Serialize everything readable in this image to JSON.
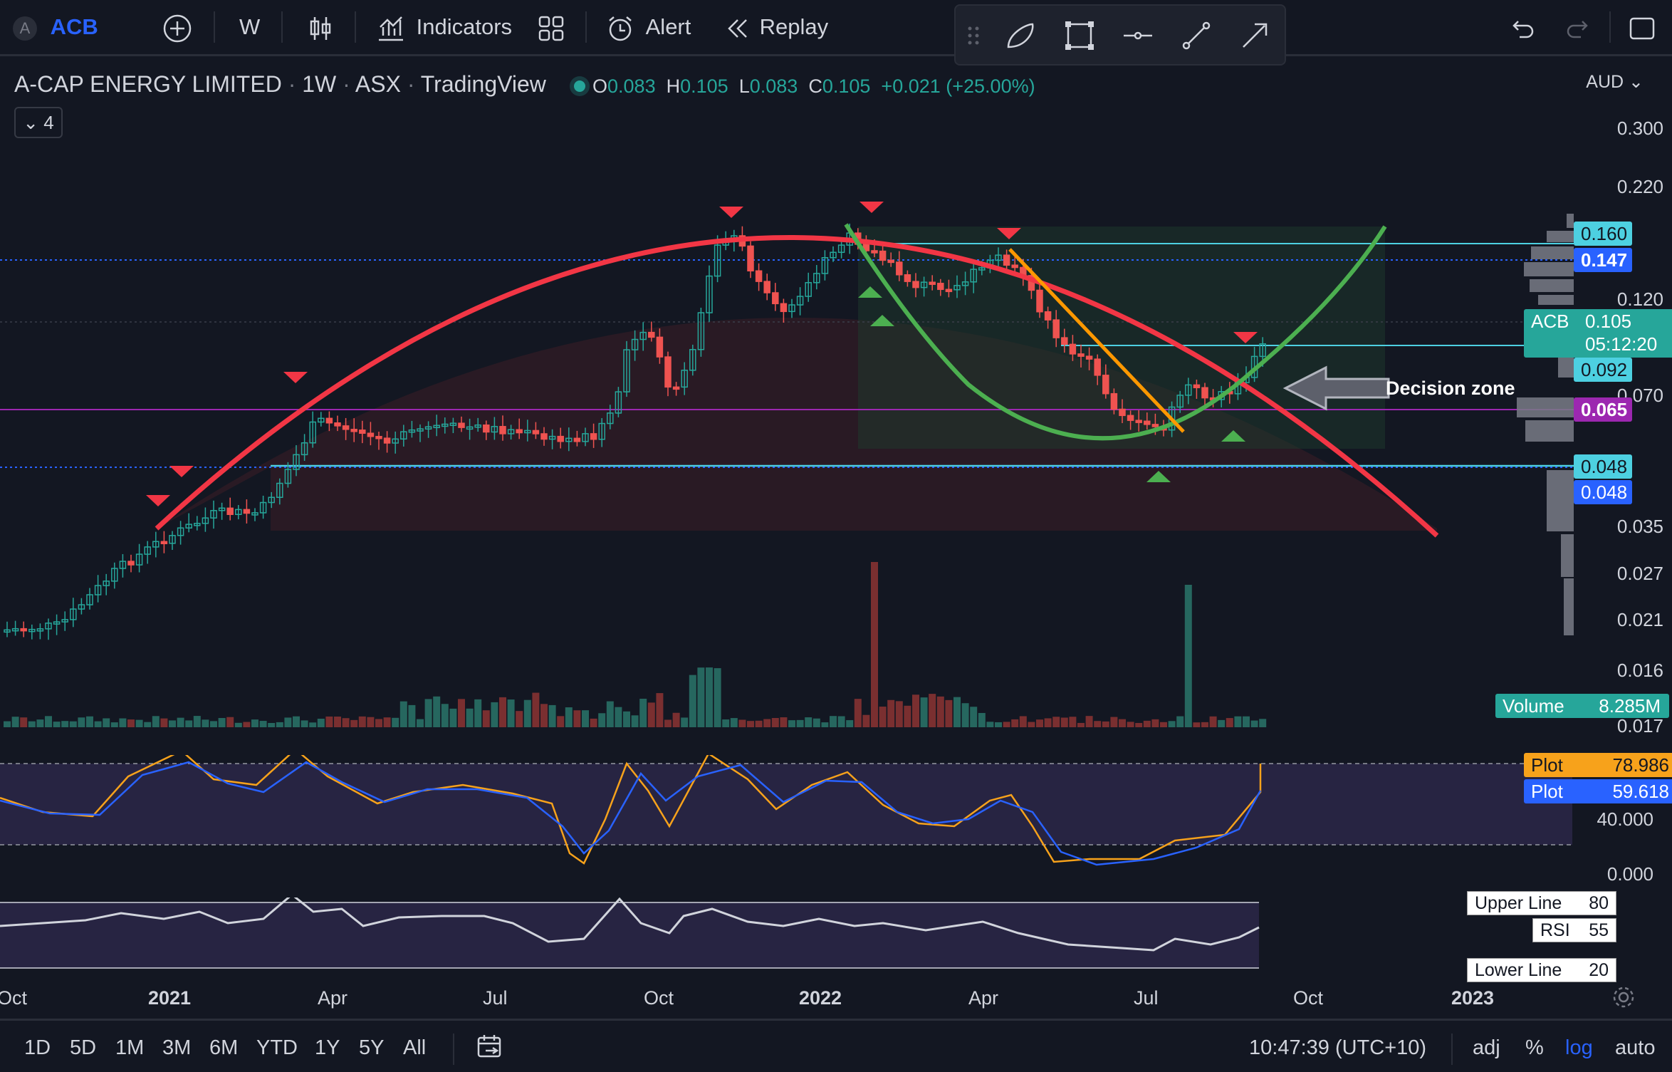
{
  "toolbar": {
    "symbol": "ACB",
    "symbol_badge": "A",
    "interval": "W",
    "indicators_label": "Indicators",
    "alert_label": "Alert",
    "replay_label": "Replay"
  },
  "legend": {
    "name": "A-CAP ENERGY LIMITED",
    "interval": "1W",
    "exchange": "ASX",
    "source": "TradingView",
    "o_key": "O",
    "o": "0.083",
    "h_key": "H",
    "h": "0.105",
    "l_key": "L",
    "l": "0.083",
    "c_key": "C",
    "c": "0.105",
    "change": "+0.021 (+25.00%)",
    "collapsed_count": "4"
  },
  "currency": "AUD",
  "price_axis": [
    "0.300",
    "0.220",
    "0.120",
    "0.070",
    "0.035",
    "0.027",
    "0.021",
    "0.016",
    "0.017"
  ],
  "price_tags": [
    {
      "label": "0.160",
      "color": "#4dd0e1",
      "text_color": "#131722"
    },
    {
      "label": "0.147",
      "color": "#2962ff",
      "text_color": "#ffffff"
    },
    {
      "label": "0.092",
      "color": "#4dd0e1",
      "text_color": "#131722"
    },
    {
      "label": "0.065",
      "color": "#9c27b0",
      "text_color": "#ffffff"
    },
    {
      "label": "0.048",
      "color": "#4dd0e1",
      "text_color": "#131722"
    },
    {
      "label": "0.048",
      "color": "#2962ff",
      "text_color": "#ffffff"
    }
  ],
  "last_price": {
    "symbol": "ACB",
    "value": "0.105",
    "countdown": "05:12:20",
    "color": "#26a69a"
  },
  "volume_tag": {
    "label": "Volume",
    "value": "8.285M"
  },
  "stoch": {
    "axis": [
      "40.000",
      "0.000"
    ],
    "plot1_label": "Plot",
    "plot1_value": "78.986",
    "plot2_label": "Plot",
    "plot2_value": "59.618"
  },
  "rsi": {
    "upper_label": "Upper Line",
    "upper_value": "80",
    "rsi_label": "RSI",
    "rsi_value": "55",
    "lower_label": "Lower Line",
    "lower_value": "20"
  },
  "annotation": "Decision zone",
  "x_axis": [
    "Oct",
    "2021",
    "Apr",
    "Jul",
    "Oct",
    "2022",
    "Apr",
    "Jul",
    "Oct",
    "2023"
  ],
  "bottom": {
    "ranges": [
      "1D",
      "5D",
      "1M",
      "3M",
      "6M",
      "YTD",
      "1Y",
      "5Y",
      "All"
    ],
    "time": "10:47:39 (UTC+10)",
    "adj": "adj",
    "pct": "%",
    "log": "log",
    "auto": "auto"
  },
  "chart_data": {
    "type": "line",
    "title": "A-CAP ENERGY LIMITED",
    "y_scale": "log",
    "ylim": [
      0.017,
      0.3
    ],
    "x": [
      "2021-01",
      "2021-04",
      "2021-07",
      "2021-10",
      "2022-01",
      "2022-04",
      "2022-07",
      "2022-09"
    ],
    "series": [
      {
        "values": [
          0.035,
          0.065,
          0.055,
          0.13,
          0.16,
          0.14,
          0.06,
          0.105
        ]
      }
    ],
    "horizontal_levels": [
      0.16,
      0.147,
      0.092,
      0.065,
      0.048
    ],
    "colors": {
      "up": "#26a69a",
      "down": "#ef5350",
      "arc": "#f23645",
      "cup": "#4caf50",
      "trend": "#ff9800"
    }
  }
}
